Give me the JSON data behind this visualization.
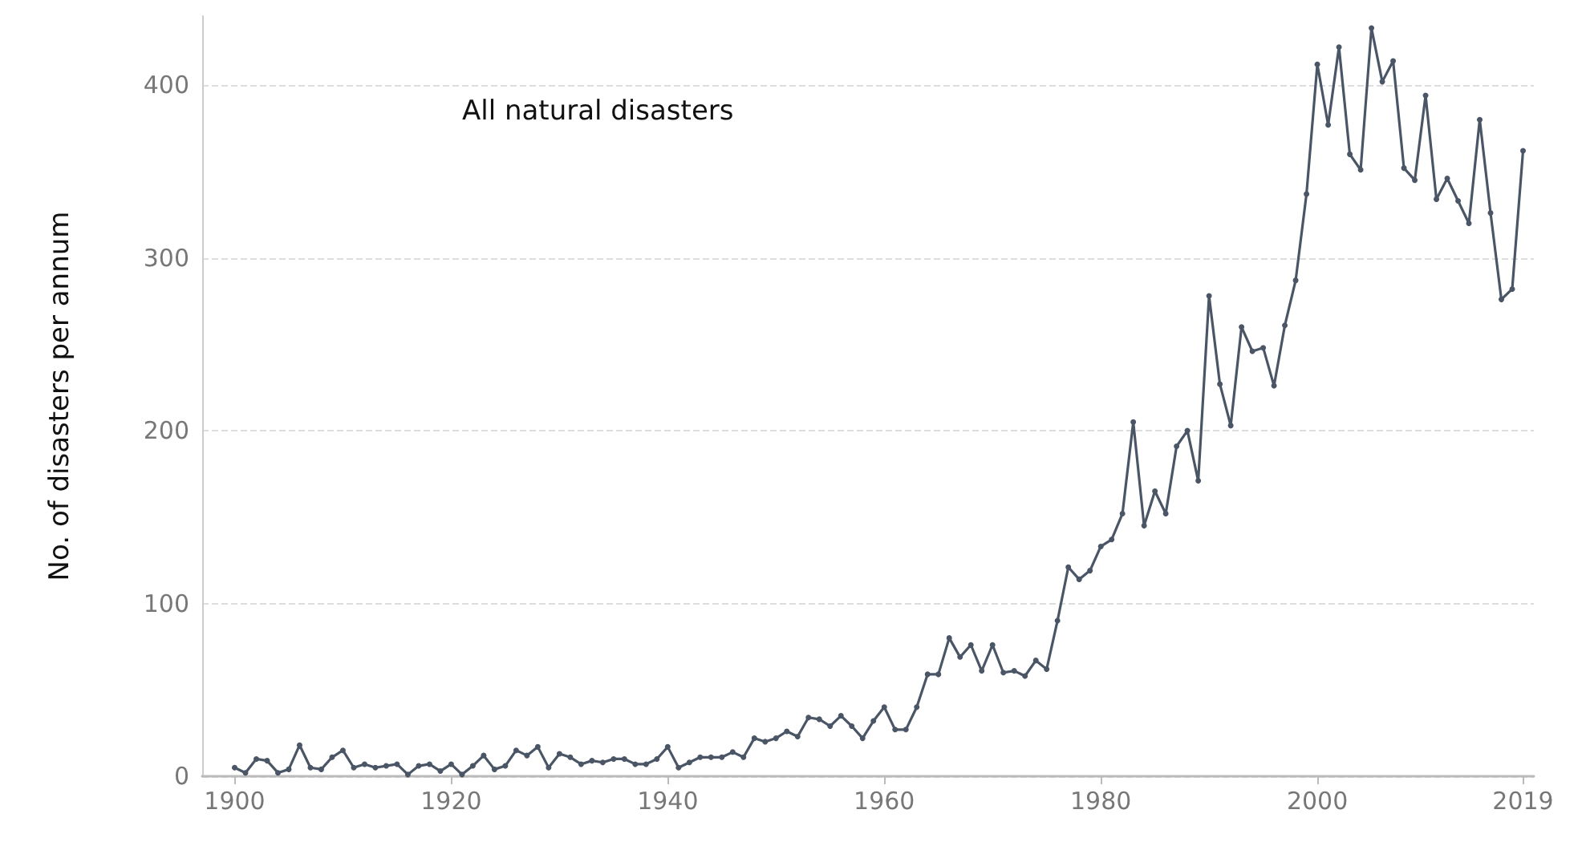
{
  "chart_data": {
    "type": "line",
    "title": "All natural disasters",
    "ylabel": "No. of disasters per annum",
    "x": [
      1900,
      1901,
      1902,
      1903,
      1904,
      1905,
      1906,
      1907,
      1908,
      1909,
      1910,
      1911,
      1912,
      1913,
      1914,
      1915,
      1916,
      1917,
      1918,
      1919,
      1920,
      1921,
      1922,
      1923,
      1924,
      1925,
      1926,
      1927,
      1928,
      1929,
      1930,
      1931,
      1932,
      1933,
      1934,
      1935,
      1936,
      1937,
      1938,
      1939,
      1940,
      1941,
      1942,
      1943,
      1944,
      1945,
      1946,
      1947,
      1948,
      1949,
      1950,
      1951,
      1952,
      1953,
      1954,
      1955,
      1956,
      1957,
      1958,
      1959,
      1960,
      1961,
      1962,
      1963,
      1964,
      1965,
      1966,
      1967,
      1968,
      1969,
      1970,
      1971,
      1972,
      1973,
      1974,
      1975,
      1976,
      1977,
      1978,
      1979,
      1980,
      1981,
      1982,
      1983,
      1984,
      1985,
      1986,
      1987,
      1988,
      1989,
      1990,
      1991,
      1992,
      1993,
      1994,
      1995,
      1996,
      1997,
      1998,
      1999,
      2000,
      2001,
      2002,
      2003,
      2004,
      2005,
      2006,
      2007,
      2008,
      2009,
      2010,
      2011,
      2012,
      2013,
      2014,
      2015,
      2016,
      2017,
      2018,
      2019
    ],
    "series": [
      {
        "color": "#4a5566",
        "values": [
          5,
          2,
          10,
          9,
          2,
          4,
          18,
          5,
          4,
          11,
          15,
          5,
          7,
          5,
          6,
          7,
          1,
          6,
          7,
          3,
          7,
          1,
          6,
          12,
          4,
          6,
          15,
          12,
          17,
          5,
          13,
          11,
          7,
          9,
          8,
          10,
          10,
          7,
          7,
          10,
          17,
          5,
          8,
          11,
          11,
          11,
          14,
          11,
          22,
          20,
          22,
          26,
          23,
          34,
          33,
          29,
          35,
          29,
          22,
          32,
          40,
          27,
          27,
          40,
          59,
          59,
          80,
          69,
          76,
          61,
          76,
          60,
          61,
          58,
          67,
          62,
          90,
          121,
          114,
          119,
          133,
          137,
          152,
          205,
          145,
          165,
          152,
          191,
          200,
          171,
          278,
          227,
          203,
          260,
          246,
          248,
          226,
          261,
          287,
          337,
          412,
          377,
          422,
          360,
          351,
          433,
          402,
          414,
          352,
          345,
          394,
          334,
          346,
          333,
          320,
          380,
          326,
          276,
          282,
          362
        ]
      }
    ],
    "xlim": [
      1897,
      2020
    ],
    "xticks": [
      1900,
      1920,
      1940,
      1960,
      1980,
      2000,
      2019
    ],
    "ylim": [
      0,
      440
    ],
    "yticks": [
      0,
      100,
      200,
      300,
      400
    ],
    "grid": "y",
    "marker": "circle",
    "line_style": "solid"
  }
}
